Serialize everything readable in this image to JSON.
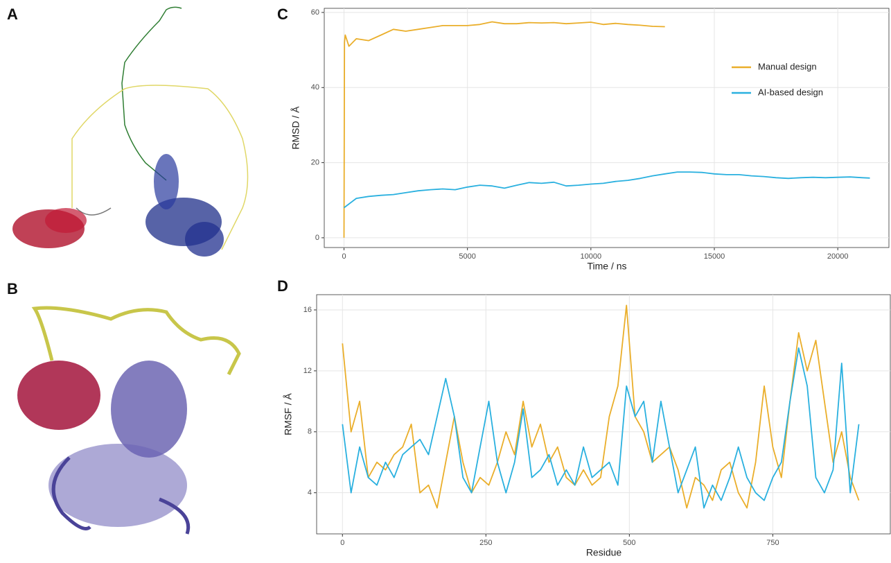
{
  "panel_labels": [
    "A",
    "B",
    "C",
    "D"
  ],
  "chart_data": [
    {
      "type": "line",
      "xlabel": "Time / ns",
      "ylabel": "RMSD / Å",
      "xlim": [
        -800,
        22100
      ],
      "ylim": [
        -2.6,
        61.1
      ],
      "xticks": [
        0,
        5000,
        10000,
        15000,
        20000
      ],
      "yticks": [
        0,
        20,
        40,
        60
      ],
      "grid": true,
      "legend": "right",
      "series": [
        {
          "name": "Manual design",
          "color": "#EAAE2A",
          "x": [
            0,
            20,
            50,
            200,
            500,
            1000,
            1500,
            2000,
            2500,
            3000,
            3500,
            4000,
            4500,
            5000,
            5500,
            6000,
            6500,
            7000,
            7500,
            8000,
            8500,
            9000,
            9500,
            10000,
            10500,
            11000,
            11500,
            12000,
            12500,
            13000
          ],
          "values": [
            0,
            52,
            54,
            51,
            53,
            52.5,
            54,
            55.5,
            55,
            55.5,
            56,
            56.5,
            56.5,
            56.5,
            56.8,
            57.5,
            57,
            57,
            57.3,
            57.2,
            57.3,
            57,
            57.2,
            57.4,
            56.8,
            57.1,
            56.8,
            56.6,
            56.3,
            56.2
          ]
        },
        {
          "name": "AI-based design",
          "color": "#29B0DF",
          "x": [
            0,
            100,
            500,
            1000,
            1500,
            2000,
            2500,
            3000,
            3500,
            4000,
            4500,
            5000,
            5500,
            6000,
            6500,
            7000,
            7500,
            8000,
            8500,
            9000,
            9500,
            10000,
            10500,
            11000,
            11500,
            12000,
            12500,
            13000,
            13500,
            14000,
            14500,
            15000,
            15500,
            16000,
            16500,
            17000,
            17500,
            18000,
            18500,
            19000,
            19500,
            20000,
            20500,
            21000,
            21300
          ],
          "values": [
            8,
            8.5,
            10.5,
            11,
            11.3,
            11.5,
            12,
            12.5,
            12.8,
            13,
            12.8,
            13.5,
            14,
            13.8,
            13.2,
            14,
            14.7,
            14.5,
            14.8,
            13.8,
            14,
            14.3,
            14.5,
            15,
            15.3,
            15.8,
            16.5,
            17,
            17.5,
            17.5,
            17.4,
            17,
            16.8,
            16.8,
            16.5,
            16.3,
            16,
            15.8,
            16,
            16.1,
            16,
            16.1,
            16.2,
            16,
            15.9
          ]
        }
      ]
    },
    {
      "type": "line",
      "xlabel": "Residue",
      "ylabel": "RMSF / Å",
      "xlim": [
        -45,
        956
      ],
      "ylim": [
        1.3,
        17.0
      ],
      "xticks": [
        0,
        250,
        500,
        750
      ],
      "yticks": [
        4,
        8,
        12,
        16
      ],
      "grid": true,
      "x": [
        0,
        15,
        30,
        45,
        60,
        75,
        90,
        105,
        120,
        135,
        150,
        165,
        180,
        195,
        210,
        225,
        240,
        255,
        270,
        285,
        300,
        315,
        330,
        345,
        360,
        375,
        390,
        405,
        420,
        435,
        450,
        465,
        480,
        495,
        510,
        525,
        540,
        555,
        570,
        585,
        600,
        615,
        630,
        645,
        660,
        675,
        690,
        705,
        720,
        735,
        750,
        765,
        780,
        795,
        810,
        825,
        840,
        855,
        870,
        885,
        900
      ],
      "series": [
        {
          "color": "#EAAE2A",
          "values": [
            13.8,
            8,
            10,
            5,
            6,
            5.5,
            6.5,
            7,
            8.5,
            4,
            4.5,
            3,
            6,
            9,
            6,
            4,
            5,
            4.5,
            6,
            8,
            6.5,
            10,
            7,
            8.5,
            6,
            7,
            5,
            4.5,
            5.5,
            4.5,
            5,
            9,
            11,
            16.3,
            9,
            8,
            6,
            6.5,
            7,
            5.5,
            3,
            5,
            4.5,
            3.5,
            5.5,
            6,
            4,
            3,
            6,
            11,
            7,
            5,
            10,
            14.5,
            12,
            14,
            10,
            6,
            8,
            5,
            3.5
          ]
        },
        {
          "color": "#29B0DF",
          "values": [
            8.5,
            4,
            7,
            5,
            4.5,
            6,
            5,
            6.5,
            7,
            7.5,
            6.5,
            9,
            11.5,
            9,
            5,
            4,
            7,
            10,
            6,
            4,
            6,
            9.5,
            5,
            5.5,
            6.5,
            4.5,
            5.5,
            4.5,
            7,
            5,
            5.5,
            6,
            4.5,
            11,
            9,
            10,
            6,
            10,
            7,
            4,
            5.5,
            7,
            3,
            4.5,
            3.5,
            5,
            7,
            5,
            4,
            3.5,
            5,
            6,
            10,
            13.5,
            11,
            5,
            4,
            5.5,
            12.5,
            4,
            8.5
          ]
        }
      ]
    }
  ]
}
